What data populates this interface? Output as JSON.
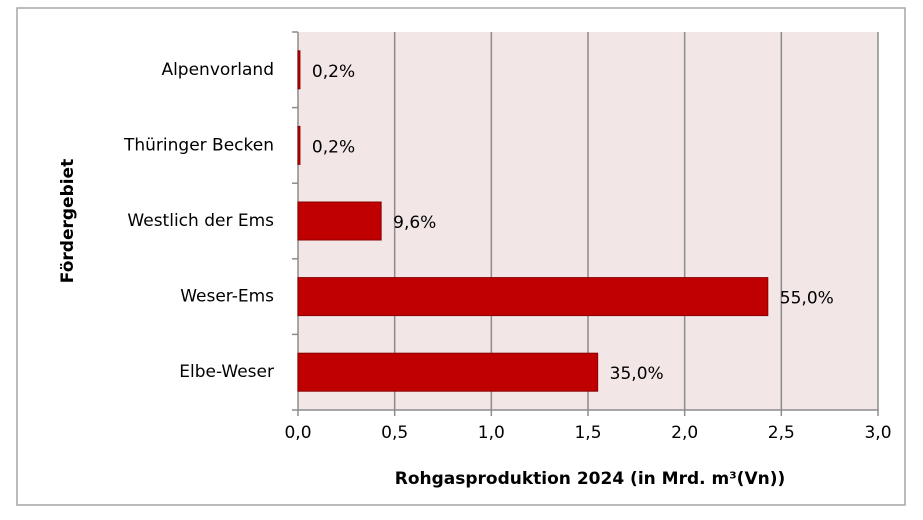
{
  "chart_data": {
    "type": "hbar",
    "xlabel": "Rohgasproduktion  2024 (in Mrd. m³(Vn))",
    "ylabel": "Fördergebiet",
    "categories": [
      "Alpenvorland",
      "Thüringer Becken",
      "Westlich der Ems",
      "Weser-Ems",
      "Elbe-Weser"
    ],
    "values": [
      0.01,
      0.01,
      0.43,
      2.43,
      1.55
    ],
    "share_labels": [
      "0,2%",
      "0,2%",
      "9,6%",
      "55,0%",
      "35,0%"
    ],
    "color": "#c00000",
    "xlim": [
      0,
      3
    ],
    "xticks": [
      {
        "value": 0,
        "label": "0,0"
      },
      {
        "value": 0.5,
        "label": "0,5"
      },
      {
        "value": 1,
        "label": "1,0"
      },
      {
        "value": 1.5,
        "label": "1,5"
      },
      {
        "value": 2,
        "label": "2,0"
      },
      {
        "value": 2.5,
        "label": "2,5"
      },
      {
        "value": 3,
        "label": "3,0"
      }
    ],
    "grid": true
  }
}
